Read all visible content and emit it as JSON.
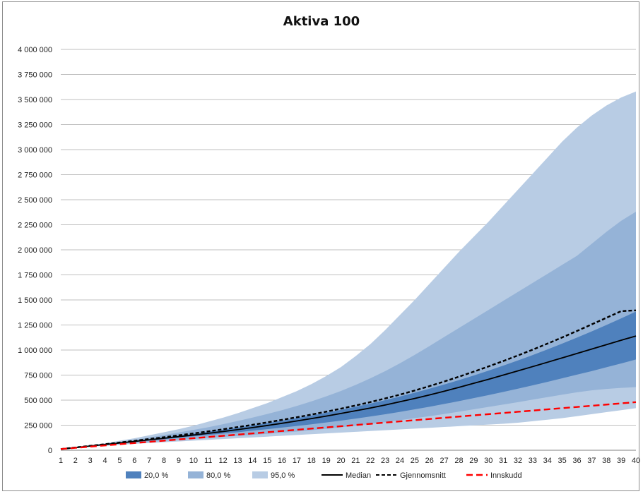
{
  "chart_data": {
    "type": "area",
    "title": "Aktiva 100",
    "xlabel": "",
    "ylabel": "",
    "x": [
      1,
      2,
      3,
      4,
      5,
      6,
      7,
      8,
      9,
      10,
      11,
      12,
      13,
      14,
      15,
      16,
      17,
      18,
      19,
      20,
      21,
      22,
      23,
      24,
      25,
      26,
      27,
      28,
      29,
      30,
      31,
      32,
      33,
      34,
      35,
      36,
      37,
      38,
      39,
      40
    ],
    "xlim": [
      1,
      40
    ],
    "ylim": [
      0,
      4000000
    ],
    "y_ticks": [
      0,
      250000,
      500000,
      750000,
      1000000,
      1250000,
      1500000,
      1750000,
      2000000,
      2250000,
      2500000,
      2750000,
      3000000,
      3250000,
      3500000,
      3750000,
      4000000
    ],
    "y_tick_labels": [
      "0",
      "250 000",
      "500 000",
      "750 000",
      "1 000 000",
      "1 250 000",
      "1 500 000",
      "1 750 000",
      "2 000 000",
      "2 250 000",
      "2 500 000",
      "2 750 000",
      "3 000 000",
      "3 250 000",
      "3 500 000",
      "3 750 000",
      "4 000 000"
    ],
    "grid": true,
    "legend_position": "bottom",
    "bands": [
      {
        "name": "95,0 %",
        "color": "#b8cce4",
        "lower": [
          12000,
          24000,
          35000,
          45000,
          55000,
          64000,
          72000,
          80000,
          88000,
          96000,
          104000,
          112000,
          120000,
          128000,
          136000,
          144000,
          152000,
          160000,
          168000,
          176000,
          184000,
          192000,
          200000,
          208000,
          216000,
          224000,
          232000,
          240000,
          248000,
          256000,
          264000,
          275000,
          290000,
          305000,
          320000,
          340000,
          360000,
          380000,
          400000,
          420000
        ],
        "upper": [
          12000,
          30000,
          50000,
          70000,
          95000,
          120000,
          150000,
          180000,
          210000,
          245000,
          285000,
          325000,
          370000,
          420000,
          470000,
          530000,
          590000,
          660000,
          740000,
          830000,
          940000,
          1060000,
          1200000,
          1350000,
          1500000,
          1660000,
          1820000,
          1980000,
          2130000,
          2280000,
          2440000,
          2600000,
          2760000,
          2920000,
          3080000,
          3220000,
          3340000,
          3440000,
          3520000,
          3580000
        ]
      },
      {
        "name": "80,0 %",
        "color": "#95b3d7",
        "lower": [
          12000,
          25000,
          38000,
          50000,
          62000,
          73000,
          83000,
          93000,
          103000,
          113000,
          123000,
          133000,
          143000,
          153000,
          164000,
          175000,
          187000,
          200000,
          214000,
          229000,
          245000,
          262000,
          280000,
          300000,
          320000,
          340000,
          362000,
          385000,
          408000,
          432000,
          456000,
          480000,
          505000,
          530000,
          555000,
          578000,
          598000,
          612000,
          622000,
          630000
        ],
        "upper": [
          12000,
          28000,
          46000,
          64000,
          84000,
          105000,
          128000,
          152000,
          177000,
          203000,
          230000,
          260000,
          292000,
          326000,
          362000,
          400000,
          442000,
          488000,
          538000,
          592000,
          652000,
          718000,
          790000,
          868000,
          952000,
          1040000,
          1130000,
          1220000,
          1310000,
          1400000,
          1490000,
          1580000,
          1670000,
          1760000,
          1850000,
          1940000,
          2060000,
          2180000,
          2290000,
          2380000
        ]
      },
      {
        "name": "20,0 %",
        "color": "#4f81bd",
        "lower": [
          12000,
          26000,
          40000,
          54000,
          68000,
          82000,
          96000,
          110000,
          124000,
          138000,
          152000,
          166000,
          180000,
          195000,
          210000,
          226000,
          242000,
          259000,
          277000,
          296000,
          316000,
          337000,
          359000,
          383000,
          408000,
          434000,
          462000,
          490000,
          520000,
          550000,
          582000,
          614000,
          648000,
          682000,
          718000,
          754000,
          790000,
          828000,
          866000,
          906000
        ],
        "upper": [
          12000,
          27000,
          43000,
          59000,
          76000,
          93000,
          110000,
          128000,
          146000,
          165000,
          185000,
          205000,
          226000,
          248000,
          271000,
          295000,
          320000,
          346000,
          374000,
          403000,
          434000,
          466000,
          500000,
          536000,
          574000,
          614000,
          656000,
          700000,
          746000,
          794000,
          844000,
          896000,
          950000,
          1006000,
          1064000,
          1124000,
          1186000,
          1250000,
          1316000,
          1384000
        ]
      }
    ],
    "series": [
      {
        "name": "Median",
        "color": "#000000",
        "style": "solid",
        "values": [
          12000,
          27000,
          42000,
          57000,
          72000,
          88000,
          104000,
          120000,
          136000,
          152000,
          169000,
          187000,
          206000,
          226000,
          247000,
          269000,
          292000,
          316000,
          341000,
          367000,
          394000,
          422000,
          452000,
          484000,
          517000,
          552000,
          589000,
          628000,
          668000,
          708000,
          750000,
          792000,
          835000,
          878000,
          922000,
          966000,
          1010000,
          1054000,
          1098000,
          1140000
        ]
      },
      {
        "name": "Gjennomsnitt",
        "color": "#000000",
        "style": "dashed",
        "values": [
          12000,
          28000,
          44000,
          60000,
          77000,
          94000,
          112000,
          130000,
          149000,
          168000,
          188000,
          209000,
          231000,
          254000,
          278000,
          303000,
          329000,
          356000,
          385000,
          415000,
          447000,
          481000,
          517000,
          555000,
          596000,
          640000,
          686000,
          734000,
          784000,
          836000,
          890000,
          946000,
          1004000,
          1064000,
          1126000,
          1190000,
          1256000,
          1322000,
          1388000,
          1396000
        ]
      },
      {
        "name": "Innskudd",
        "color": "#ff0000",
        "style": "dashed",
        "values": [
          12000,
          24000,
          36000,
          48000,
          60000,
          72000,
          84000,
          96000,
          108000,
          120000,
          132000,
          144000,
          156000,
          168000,
          180000,
          192000,
          204000,
          216000,
          228000,
          240000,
          252000,
          264000,
          276000,
          288000,
          300000,
          312000,
          324000,
          336000,
          348000,
          360000,
          372000,
          384000,
          396000,
          408000,
          420000,
          432000,
          444000,
          456000,
          468000,
          480000
        ]
      }
    ],
    "legend": [
      {
        "label": "20,0 %",
        "kind": "patch",
        "color": "#4f81bd"
      },
      {
        "label": "80,0 %",
        "kind": "patch",
        "color": "#95b3d7"
      },
      {
        "label": "95,0 %",
        "kind": "patch",
        "color": "#b8cce4"
      },
      {
        "label": "Median",
        "kind": "line",
        "color": "#000000",
        "style": "solid"
      },
      {
        "label": "Gjennomsnitt",
        "kind": "line",
        "color": "#000000",
        "style": "dashed"
      },
      {
        "label": "Innskudd",
        "kind": "line",
        "color": "#ff0000",
        "style": "dashed"
      }
    ]
  }
}
